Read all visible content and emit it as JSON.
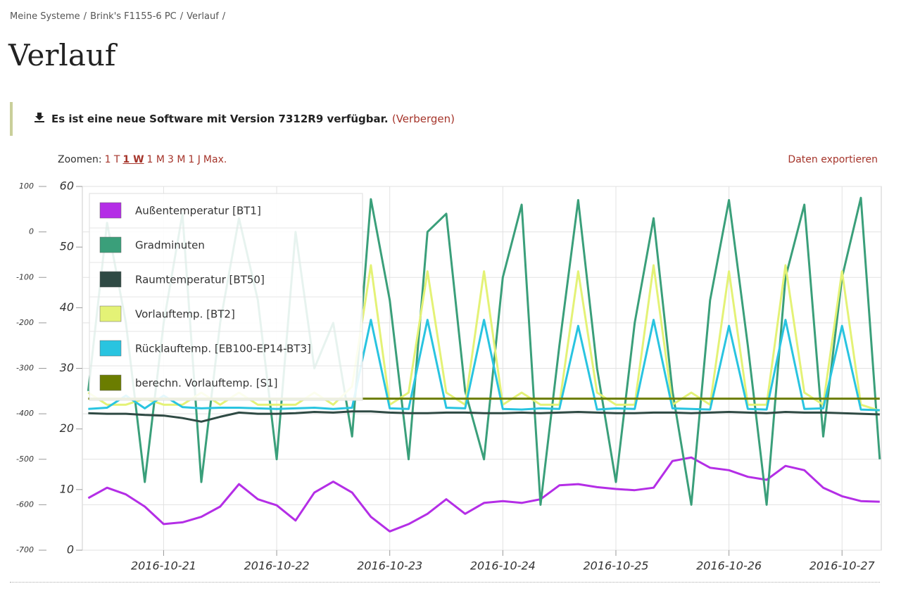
{
  "breadcrumb": {
    "items": [
      "Meine Systeme",
      "Brink's F1155-6 PC",
      "Verlauf"
    ],
    "separator": "/"
  },
  "title": "Verlauf",
  "notice": {
    "text": "Es ist eine neue Software mit Version 7312R9 verfügbar.",
    "link": "(Verbergen)"
  },
  "zoom": {
    "label": "Zoomen:",
    "options": [
      "1 T",
      "1 W",
      "1 M",
      "3 M",
      "1 J",
      "Max."
    ],
    "selected": 1
  },
  "export": "Daten exportieren",
  "chart_data": {
    "type": "line",
    "x": [
      "2016-10-20 08:00",
      "2016-10-20 12:00",
      "2016-10-20 16:00",
      "2016-10-20 20:00",
      "2016-10-21 00:00",
      "2016-10-21 04:00",
      "2016-10-21 08:00",
      "2016-10-21 12:00",
      "2016-10-21 16:00",
      "2016-10-21 20:00",
      "2016-10-22 00:00",
      "2016-10-22 04:00",
      "2016-10-22 08:00",
      "2016-10-22 12:00",
      "2016-10-22 16:00",
      "2016-10-22 20:00",
      "2016-10-23 00:00",
      "2016-10-23 04:00",
      "2016-10-23 08:00",
      "2016-10-23 12:00",
      "2016-10-23 16:00",
      "2016-10-23 20:00",
      "2016-10-24 00:00",
      "2016-10-24 04:00",
      "2016-10-24 08:00",
      "2016-10-24 12:00",
      "2016-10-24 16:00",
      "2016-10-24 20:00",
      "2016-10-25 00:00",
      "2016-10-25 04:00",
      "2016-10-25 08:00",
      "2016-10-25 12:00",
      "2016-10-25 16:00",
      "2016-10-25 20:00",
      "2016-10-26 00:00",
      "2016-10-26 04:00",
      "2016-10-26 08:00",
      "2016-10-26 12:00",
      "2016-10-26 16:00",
      "2016-10-26 20:00",
      "2016-10-27 00:00",
      "2016-10-27 04:00",
      "2016-10-27 08:00"
    ],
    "xlim": [
      "2016-10-20 06:45",
      "2016-10-27 08:20"
    ],
    "xticks": [
      "2016-10-21",
      "2016-10-22",
      "2016-10-23",
      "2016-10-24",
      "2016-10-25",
      "2016-10-26",
      "2016-10-27"
    ],
    "ylim": [
      0,
      60
    ],
    "yticks": [
      0,
      10,
      20,
      30,
      40,
      50,
      60
    ],
    "y2lim": [
      -700,
      100
    ],
    "y2ticks": [
      -700,
      -600,
      -500,
      -400,
      -300,
      -200,
      -100,
      0,
      100
    ],
    "grid": true,
    "legend": "top-left",
    "series": [
      {
        "name": "Außentemperatur [BT1]",
        "color": "#b42ee6",
        "values": [
          8.6,
          10.3,
          9.2,
          7.2,
          4.3,
          4.6,
          5.5,
          7.2,
          10.9,
          8.4,
          7.4,
          4.9,
          9.5,
          11.3,
          9.5,
          5.5,
          3.1,
          4.3,
          6.0,
          8.4,
          6.0,
          7.8,
          8.1,
          7.8,
          8.4,
          10.7,
          10.9,
          10.4,
          10.1,
          9.9,
          10.3,
          14.7,
          15.3,
          13.6,
          13.2,
          12.1,
          11.6,
          13.9,
          13.2,
          10.3,
          8.9,
          8.1,
          8.0
        ]
      },
      {
        "name": "Gradminuten",
        "color": "#3a9f7a",
        "axis": "y2",
        "values": [
          -350,
          20,
          -200,
          -550,
          -200,
          40,
          -550,
          -200,
          30,
          -150,
          -500,
          0,
          -300,
          -200,
          -450,
          72,
          -150,
          -500,
          0,
          40,
          -350,
          -500,
          -100,
          60,
          -600,
          -250,
          70,
          -300,
          -550,
          -200,
          30,
          -350,
          -600,
          -150,
          70,
          -250,
          -600,
          -100,
          60,
          -450,
          -100,
          75,
          -500
        ]
      },
      {
        "name": "Raumtemperatur [BT50]",
        "color": "#2f4a44",
        "values": [
          22.6,
          22.5,
          22.5,
          22.3,
          22.2,
          21.8,
          21.2,
          22.0,
          22.7,
          22.5,
          22.5,
          22.6,
          22.8,
          22.7,
          22.9,
          22.9,
          22.7,
          22.6,
          22.6,
          22.7,
          22.7,
          22.6,
          22.6,
          22.7,
          22.6,
          22.7,
          22.8,
          22.7,
          22.6,
          22.6,
          22.7,
          22.7,
          22.6,
          22.7,
          22.8,
          22.7,
          22.6,
          22.8,
          22.7,
          22.7,
          22.6,
          22.5,
          22.4
        ]
      },
      {
        "name": "Vorlauftemp. [BT2]",
        "color": "#e4f276",
        "values": [
          26,
          24,
          24,
          25,
          24,
          24,
          26,
          24,
          26,
          24,
          24,
          24,
          26,
          24,
          27,
          47,
          24,
          26,
          46,
          26,
          24,
          46,
          24,
          26,
          24,
          24,
          46,
          26,
          24,
          24,
          47,
          24,
          26,
          24,
          46,
          24,
          24,
          47,
          26,
          24,
          46,
          24,
          23
        ]
      },
      {
        "name": "Rücklauftemp. [EB100-EP14-BT3]",
        "color": "#29c4e0",
        "values": [
          23.3,
          23.5,
          25.5,
          23.4,
          25.5,
          23.6,
          23.4,
          23.5,
          23.5,
          23.4,
          23.3,
          23.4,
          23.5,
          23.3,
          23.5,
          38,
          23.4,
          23.3,
          38,
          23.5,
          23.4,
          38,
          23.3,
          23.2,
          23.4,
          23.3,
          37,
          23.2,
          23.4,
          23.3,
          38,
          23.4,
          23.3,
          23.2,
          37,
          23.3,
          23.2,
          38,
          23.3,
          23.4,
          37,
          23.2,
          23.1
        ]
      },
      {
        "name": "berechn. Vorlauftemp. [S1]",
        "color": "#6b7d00",
        "values": [
          25,
          25,
          25,
          25,
          25,
          25,
          25,
          25,
          25,
          25,
          25,
          25,
          25,
          25,
          25,
          25,
          25,
          25,
          25,
          25,
          25,
          25,
          25,
          25,
          25,
          25,
          25,
          25,
          25,
          25,
          25,
          25,
          25,
          25,
          25,
          25,
          25,
          25,
          25,
          25,
          25,
          25,
          25
        ]
      }
    ]
  }
}
